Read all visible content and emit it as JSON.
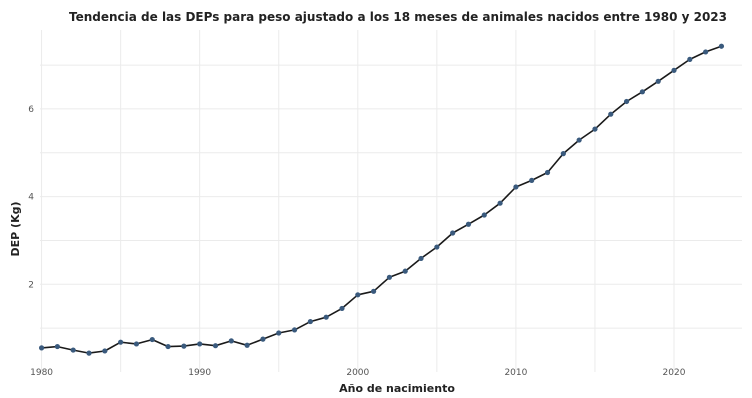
{
  "chart_data": {
    "type": "line",
    "title": "Tendencia de las DEPs para peso ajustado a los 18 meses de animales nacidos entre 1980 y 2023",
    "xlabel": "Año de nacimiento",
    "ylabel": "DEP (Kg)",
    "xlim": [
      1979.9,
      2024.3
    ],
    "ylim": [
      0,
      7.8
    ],
    "x_ticks": [
      1980,
      1990,
      2000,
      2010,
      2020
    ],
    "y_ticks": [
      2,
      4,
      6
    ],
    "grid": true,
    "line_color": "#1a1a1a",
    "point_color": "#3a5a7d",
    "series": [
      {
        "x": [
          1980,
          1981,
          1982,
          1983,
          1984,
          1985,
          1986,
          1987,
          1988,
          1989,
          1990,
          1991,
          1992,
          1993,
          1994,
          1995,
          1996,
          1997,
          1998,
          1999,
          2000,
          2001,
          2002,
          2003,
          2004,
          2005,
          2006,
          2007,
          2008,
          2009,
          2010,
          2011,
          2012,
          2013,
          2014,
          2015,
          2016,
          2017,
          2018,
          2019,
          2020,
          2021,
          2022,
          2023
        ],
        "values": [
          0.55,
          0.58,
          0.5,
          0.43,
          0.48,
          0.68,
          0.64,
          0.74,
          0.58,
          0.59,
          0.64,
          0.6,
          0.71,
          0.61,
          0.75,
          0.89,
          0.96,
          1.15,
          1.25,
          1.45,
          1.76,
          1.84,
          2.16,
          2.3,
          2.59,
          2.85,
          3.17,
          3.37,
          3.58,
          3.85,
          4.22,
          4.37,
          4.55,
          4.98,
          5.29,
          5.54,
          5.88,
          6.17,
          6.39,
          6.63,
          6.88,
          7.13,
          7.3,
          7.43
        ]
      }
    ]
  }
}
